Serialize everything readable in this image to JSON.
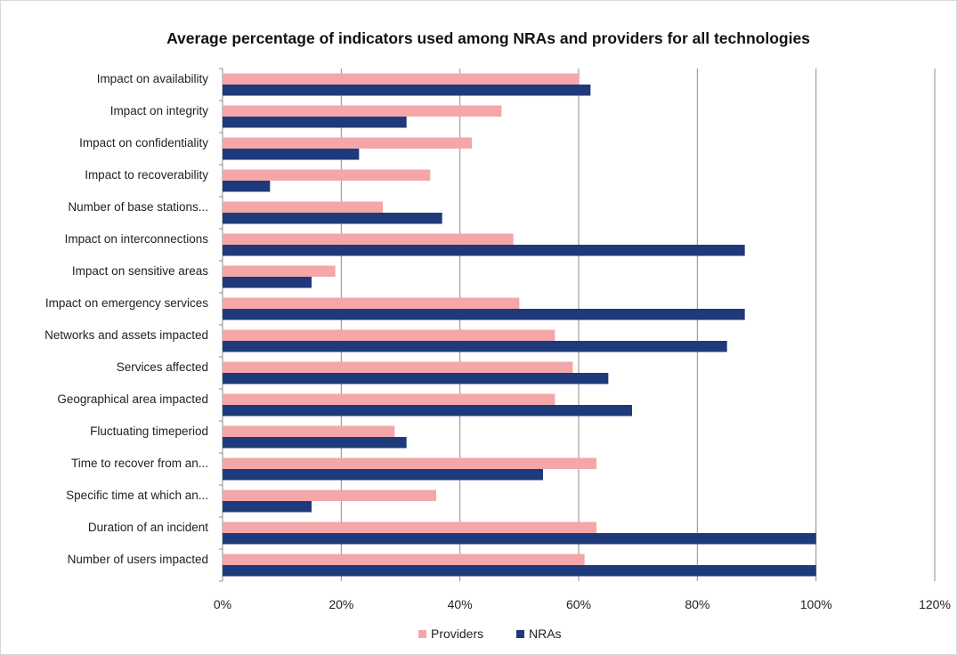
{
  "chart_data": {
    "type": "bar",
    "orientation": "horizontal",
    "title": "Average percentage of indicators used among NRAs and providers for all technologies",
    "categories": [
      "Impact on availability",
      "Impact on integrity",
      "Impact on confidentiality",
      "Impact to recoverability",
      "Number of base stations...",
      "Impact on interconnections",
      "Impact on sensitive areas",
      "Impact on emergency services",
      "Networks and assets impacted",
      "Services affected",
      "Geographical area impacted",
      "Fluctuating timeperiod",
      "Time to recover from an...",
      "Specific time at which an...",
      "Duration of an incident",
      "Number of users impacted"
    ],
    "series": [
      {
        "name": "Providers",
        "color": "#f4a6a8",
        "values": [
          0.6,
          0.47,
          0.42,
          0.35,
          0.27,
          0.49,
          0.19,
          0.5,
          0.56,
          0.59,
          0.56,
          0.29,
          0.63,
          0.36,
          0.63,
          0.61
        ]
      },
      {
        "name": "NRAs",
        "color": "#1f3a7a",
        "values": [
          0.62,
          0.31,
          0.23,
          0.08,
          0.37,
          0.88,
          0.15,
          0.88,
          0.85,
          0.65,
          0.69,
          0.31,
          0.54,
          0.15,
          1.0,
          1.0
        ]
      }
    ],
    "x_ticks": [
      "0%",
      "20%",
      "40%",
      "60%",
      "80%",
      "100%",
      "120%"
    ],
    "xlim": [
      0,
      1.2
    ],
    "grid": true,
    "legend": "bottom"
  }
}
